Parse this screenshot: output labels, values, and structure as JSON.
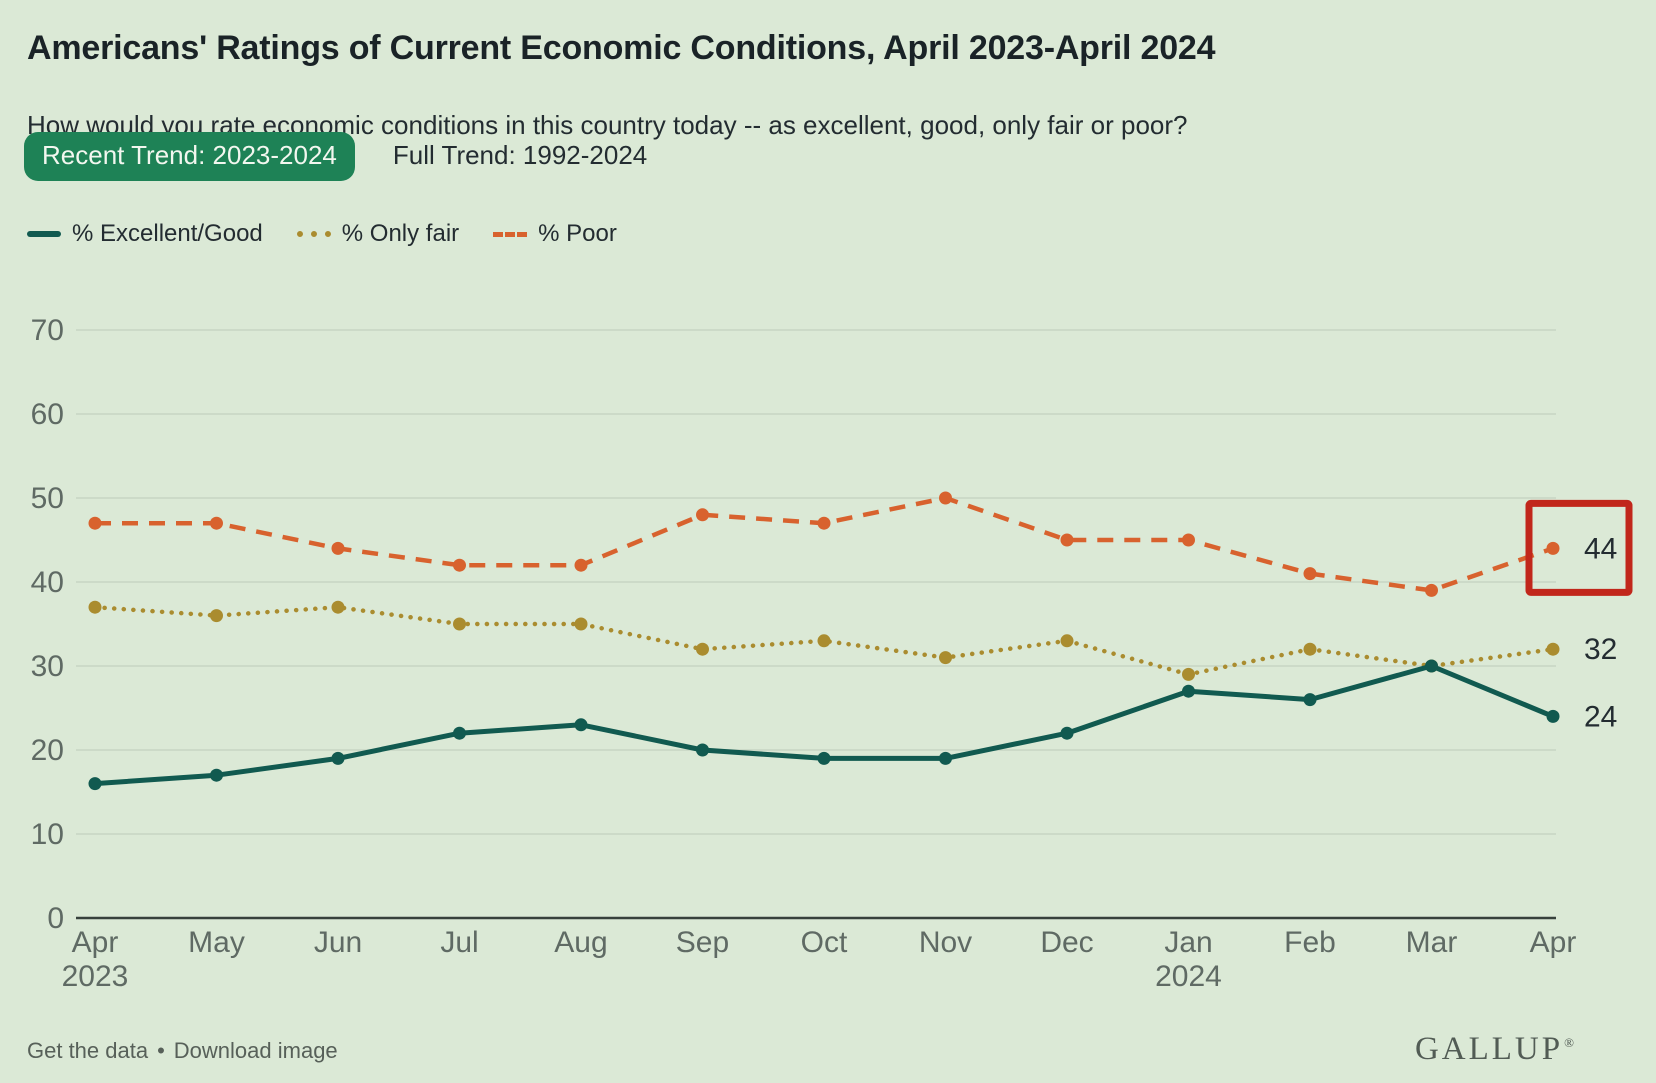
{
  "header": {
    "title": "Americans' Ratings of Current Economic Conditions, April 2023-April 2024",
    "subtitle": "How would you rate economic conditions in this country today -- as excellent, good, only fair or poor?"
  },
  "tabs": [
    {
      "label": "Recent Trend: 2023-2024",
      "active": true
    },
    {
      "label": "Full Trend: 1992-2024",
      "active": false
    }
  ],
  "chart_data": {
    "type": "line",
    "categories": [
      "Apr 2023",
      "May 2023",
      "Jun 2023",
      "Jul 2023",
      "Aug 2023",
      "Sep 2023",
      "Oct 2023",
      "Nov 2023",
      "Dec 2023",
      "Jan 2024",
      "Feb 2024",
      "Mar 2024",
      "Apr 2024"
    ],
    "months": [
      {
        "label": "Apr",
        "sublabel": "2023"
      },
      {
        "label": "May"
      },
      {
        "label": "Jun"
      },
      {
        "label": "Jul"
      },
      {
        "label": "Aug"
      },
      {
        "label": "Sep"
      },
      {
        "label": "Oct"
      },
      {
        "label": "Nov"
      },
      {
        "label": "Dec"
      },
      {
        "label": "Jan",
        "sublabel": "2024"
      },
      {
        "label": "Feb"
      },
      {
        "label": "Mar"
      },
      {
        "label": "Apr"
      }
    ],
    "series": [
      {
        "key": "excellent-good",
        "name": "% Excellent/Good",
        "color": "#115a50",
        "dash": "solid",
        "values": [
          16,
          17,
          19,
          22,
          23,
          20,
          19,
          19,
          22,
          27,
          26,
          30,
          24
        ],
        "end_label": "24"
      },
      {
        "key": "only-fair",
        "name": "% Only fair",
        "color": "#aa8c2f",
        "dash": "dotted",
        "values": [
          37,
          36,
          37,
          35,
          35,
          32,
          33,
          31,
          33,
          29,
          32,
          30,
          32
        ],
        "end_label": "32"
      },
      {
        "key": "poor",
        "name": "% Poor",
        "color": "#d8622e",
        "dash": "dashed",
        "values": [
          47,
          47,
          44,
          42,
          42,
          48,
          47,
          50,
          45,
          45,
          41,
          39,
          44
        ],
        "end_label": "44",
        "highlight_last": true
      }
    ],
    "ylim": [
      0,
      70
    ],
    "yticks": [
      0,
      10,
      20,
      30,
      40,
      50,
      60,
      70
    ],
    "grid": true,
    "legend_position": "top",
    "highlight_color": "#c1271b"
  },
  "footer": {
    "links": [
      "Get the data",
      "Download image"
    ],
    "separator": "•",
    "brand": "GALLUP",
    "brand_mark": "®"
  },
  "colors": {
    "bg": "#dbe9d6",
    "title_text": "#1a2327",
    "body_text": "#232c31",
    "muted_text": "#5f6a64",
    "tab_active_bg": "#1e8256",
    "tab_active_text": "#f2f7ef",
    "gridline": "#c7d5c3",
    "axis": "#37413c",
    "highlight_red": "#c1271b",
    "link_text": "#576059",
    "brand_text": "#525c55"
  }
}
